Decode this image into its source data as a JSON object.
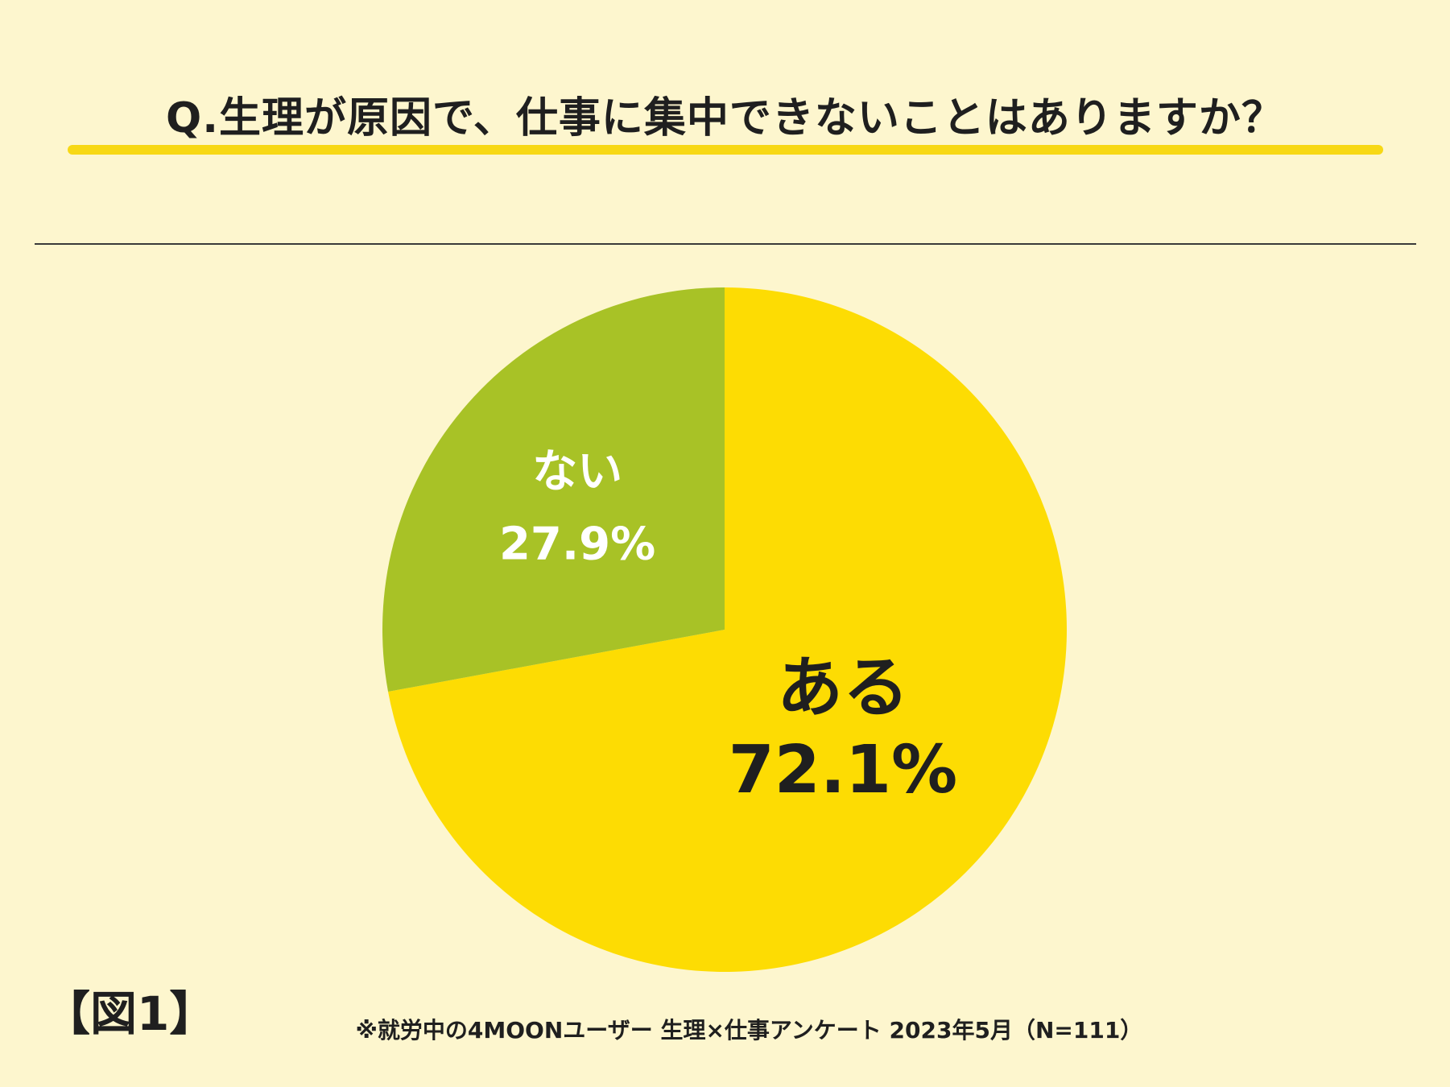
{
  "title": "Q.生理が原因で、仕事に集中できないことはありますか？",
  "figure_label": "【図1】",
  "source_note": "※就労中の4MOONユーザー 生理×仕事アンケート 2023年5月（N=111）",
  "colors": {
    "background": "#FDF6CE",
    "underline": "#F7D815",
    "slice_aru": "#FDDC03",
    "slice_nai": "#A8C226",
    "label_dark": "#1f1f1f",
    "label_light": "#ffffff"
  },
  "chart_data": {
    "type": "pie",
    "title": "Q.生理が原因で、仕事に集中できないことはありますか？",
    "slices": [
      {
        "label": "ある",
        "value": 72.1,
        "value_label": "72.1%",
        "color": "#FDDC03",
        "text_color": "#1f1f1f"
      },
      {
        "label": "ない",
        "value": 27.9,
        "value_label": "27.9%",
        "color": "#A8C226",
        "text_color": "#ffffff"
      }
    ],
    "start_angle": "12 o'clock",
    "direction": "clockwise",
    "legend": "none"
  }
}
